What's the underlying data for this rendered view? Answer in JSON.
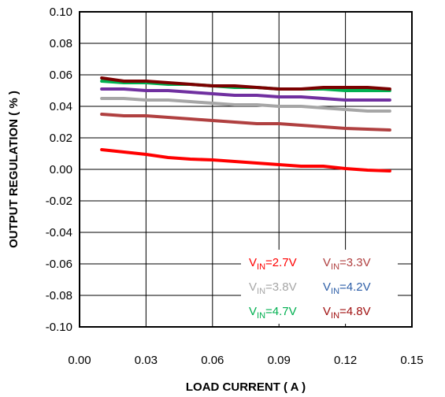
{
  "chart_data": {
    "type": "line",
    "xlabel": "LOAD CURRENT  ( A )",
    "ylabel": "OUTPUT REGULATION ( % )",
    "xlim": [
      0.0,
      0.15
    ],
    "ylim": [
      -0.1,
      0.1
    ],
    "x_ticks": [
      "0.00",
      "0.03",
      "0.06",
      "0.09",
      "0.12",
      "0.15"
    ],
    "y_ticks": [
      "0.10",
      "0.08",
      "0.06",
      "0.04",
      "0.02",
      "0.00",
      "-0.02",
      "-0.04",
      "-0.06",
      "-0.08",
      "-0.10"
    ],
    "grid": true,
    "legend_position": "bottom-right, inside plot",
    "series": [
      {
        "legend_main": "V",
        "legend_sub": "IN",
        "legend_value": "=2.7V",
        "color": "#ff0000",
        "x": [
          0.01,
          0.02,
          0.03,
          0.04,
          0.05,
          0.06,
          0.07,
          0.08,
          0.09,
          0.1,
          0.11,
          0.12,
          0.13,
          0.14
        ],
        "y": [
          0.0125,
          0.011,
          0.0095,
          0.0075,
          0.0065,
          0.006,
          0.005,
          0.004,
          0.003,
          0.002,
          0.002,
          0.0005,
          -0.0005,
          -0.001
        ]
      },
      {
        "legend_main": "V",
        "legend_sub": "IN",
        "legend_value": "=3.3V",
        "color": "#b04040",
        "x": [
          0.01,
          0.02,
          0.03,
          0.04,
          0.05,
          0.06,
          0.07,
          0.08,
          0.09,
          0.1,
          0.11,
          0.12,
          0.13,
          0.14
        ],
        "y": [
          0.035,
          0.034,
          0.034,
          0.033,
          0.032,
          0.031,
          0.03,
          0.029,
          0.029,
          0.028,
          0.027,
          0.026,
          0.0255,
          0.025
        ]
      },
      {
        "legend_main": "V",
        "legend_sub": "IN",
        "legend_value": "=3.8V",
        "color": "#a6a6a6",
        "x": [
          0.01,
          0.02,
          0.03,
          0.04,
          0.05,
          0.06,
          0.07,
          0.08,
          0.09,
          0.1,
          0.11,
          0.12,
          0.13,
          0.14
        ],
        "y": [
          0.045,
          0.045,
          0.044,
          0.044,
          0.043,
          0.042,
          0.041,
          0.041,
          0.04,
          0.04,
          0.039,
          0.038,
          0.037,
          0.037
        ]
      },
      {
        "legend_main": "V",
        "legend_sub": "IN",
        "legend_value": "=4.2V",
        "color": "#7030a0",
        "legend_color": "#2e5fa8",
        "x": [
          0.01,
          0.02,
          0.03,
          0.04,
          0.05,
          0.06,
          0.07,
          0.08,
          0.09,
          0.1,
          0.11,
          0.12,
          0.13,
          0.14
        ],
        "y": [
          0.051,
          0.051,
          0.05,
          0.05,
          0.049,
          0.048,
          0.047,
          0.047,
          0.046,
          0.046,
          0.045,
          0.044,
          0.044,
          0.044
        ]
      },
      {
        "legend_main": "V",
        "legend_sub": "IN",
        "legend_value": "=4.7V",
        "color": "#00b050",
        "x": [
          0.01,
          0.02,
          0.03,
          0.04,
          0.05,
          0.06,
          0.07,
          0.08,
          0.09,
          0.1,
          0.11,
          0.12,
          0.13,
          0.14
        ],
        "y": [
          0.056,
          0.055,
          0.055,
          0.054,
          0.054,
          0.053,
          0.052,
          0.052,
          0.051,
          0.051,
          0.051,
          0.05,
          0.05,
          0.05
        ]
      },
      {
        "legend_main": "V",
        "legend_sub": "IN",
        "legend_value": "=4.8V",
        "color": "#7b0000",
        "legend_color": "#a01010",
        "x": [
          0.01,
          0.02,
          0.03,
          0.04,
          0.05,
          0.06,
          0.07,
          0.08,
          0.09,
          0.1,
          0.11,
          0.12,
          0.13,
          0.14
        ],
        "y": [
          0.058,
          0.056,
          0.056,
          0.055,
          0.054,
          0.053,
          0.053,
          0.052,
          0.051,
          0.051,
          0.052,
          0.052,
          0.052,
          0.051
        ]
      }
    ]
  }
}
